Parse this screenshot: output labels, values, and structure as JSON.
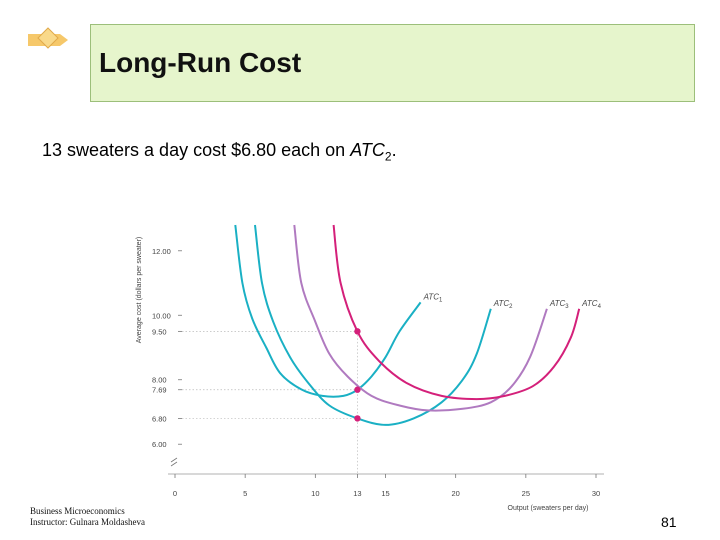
{
  "slide": {
    "title": "Long-Run Cost",
    "subtitle": {
      "prefix": "13 sweaters a day cost $6.80 each on ",
      "curve_name": "ATC",
      "curve_sub": "2",
      "suffix": "."
    },
    "footer": [
      "Business Microeconomics",
      "Instructor: Gulnara Moldasheva"
    ],
    "page_number": "81"
  },
  "colors": {
    "ATC1": "#1ab0c4",
    "ATC2": "#1ab0c4",
    "ATC3": "#b07ac0",
    "ATC4": "#d4207a",
    "highlight_text": "#d4207a",
    "title_bg": "#e6f5cc"
  },
  "chart_data": {
    "type": "line",
    "xlabel": "Output (sweaters per day)",
    "ylabel": "Average cost (dollars per sweater)",
    "x_ticks": [
      {
        "value": 0,
        "label": "0"
      },
      {
        "value": 5,
        "label": "5"
      },
      {
        "value": 10,
        "label": "10"
      },
      {
        "value": 13,
        "label": "13",
        "highlight": true
      },
      {
        "value": 15,
        "label": "15"
      },
      {
        "value": 20,
        "label": "20"
      },
      {
        "value": 25,
        "label": "25"
      },
      {
        "value": 30,
        "label": "30"
      }
    ],
    "y_ticks": [
      {
        "value": 12.0,
        "label": "12.00"
      },
      {
        "value": 10.0,
        "label": "10.00"
      },
      {
        "value": 9.5,
        "label": "9.50",
        "highlight": true
      },
      {
        "value": 8.0,
        "label": "8.00"
      },
      {
        "value": 7.69,
        "label": "7.69",
        "highlight": true
      },
      {
        "value": 6.8,
        "label": "6.80",
        "highlight": true
      },
      {
        "value": 6.0,
        "label": "6.00"
      }
    ],
    "xlim": [
      0,
      30
    ],
    "ylim": [
      5.2,
      12.8
    ],
    "axis_break_on_y": true,
    "series": [
      {
        "name": "ATC1",
        "label_text": "ATC",
        "label_sub": "1",
        "color_key": "ATC1",
        "x": [
          4.3,
          4.8,
          5.5,
          6.5,
          7.5,
          9,
          10.5,
          12,
          13,
          14,
          15,
          16,
          17.5
        ],
        "y": [
          12.8,
          11.0,
          9.9,
          9.0,
          8.2,
          7.7,
          7.5,
          7.5,
          7.69,
          8.1,
          8.7,
          9.5,
          10.4
        ]
      },
      {
        "name": "ATC2",
        "label_text": "ATC",
        "label_sub": "2",
        "color_key": "ATC2",
        "x": [
          5.7,
          6.2,
          7.0,
          8.2,
          9.5,
          11,
          13,
          15,
          17,
          19,
          20.5,
          21.5,
          22.5
        ],
        "y": [
          12.8,
          11.0,
          9.8,
          8.7,
          7.9,
          7.2,
          6.8,
          6.6,
          6.8,
          7.3,
          8.0,
          8.8,
          10.2
        ]
      },
      {
        "name": "ATC3",
        "label_text": "ATC",
        "label_sub": "3",
        "color_key": "ATC3",
        "x": [
          8.5,
          9.0,
          10.0,
          11.0,
          12.3,
          14,
          16,
          18,
          20.5,
          22.5,
          24,
          25.3,
          26.5
        ],
        "y": [
          12.8,
          11.0,
          9.8,
          8.8,
          8.1,
          7.5,
          7.2,
          7.05,
          7.1,
          7.3,
          7.8,
          8.7,
          10.2
        ]
      },
      {
        "name": "ATC4",
        "label_text": "ATC",
        "label_sub": "4",
        "color_key": "ATC4",
        "x": [
          11.3,
          11.8,
          13.0,
          14.5,
          16.5,
          19,
          21.5,
          23.5,
          25.5,
          27,
          28.2,
          28.8
        ],
        "y": [
          12.8,
          11.0,
          9.5,
          8.6,
          7.9,
          7.5,
          7.4,
          7.5,
          7.8,
          8.4,
          9.3,
          10.2
        ]
      }
    ],
    "highlight_points": [
      {
        "x": 13,
        "y": 9.5,
        "series": "ATC4"
      },
      {
        "x": 13,
        "y": 7.69,
        "series": "ATC1"
      },
      {
        "x": 13,
        "y": 6.8,
        "series": "ATC2"
      }
    ]
  }
}
